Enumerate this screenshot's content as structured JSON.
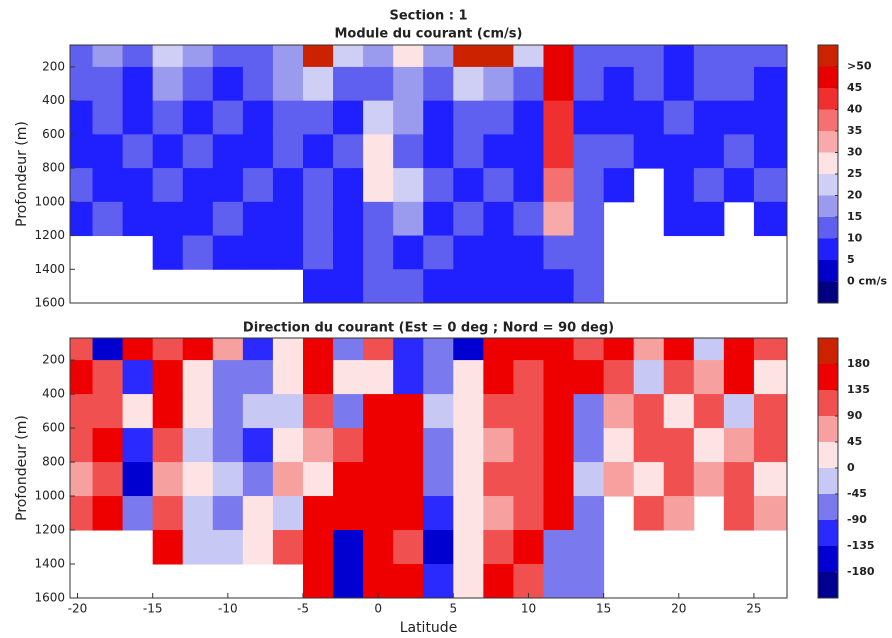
{
  "chart_data": [
    {
      "type": "heatmap",
      "title": "Section : 1",
      "subtitle": "Module du courant (cm/s)",
      "ylabel": "Profondeur (m)",
      "x": [
        -20,
        -18,
        -16,
        -14,
        -12,
        -10,
        -8,
        -6,
        -4,
        -2,
        0,
        2,
        4,
        6,
        8,
        10,
        12,
        14,
        16,
        18,
        20,
        22,
        24,
        26
      ],
      "y": [
        100,
        300,
        500,
        700,
        900,
        1100,
        1300,
        1500
      ],
      "values": [
        [
          12,
          18,
          10,
          20,
          15,
          12,
          10,
          18,
          50,
          20,
          15,
          25,
          15,
          55,
          55,
          20,
          45,
          10,
          12,
          10,
          8,
          10,
          12,
          10
        ],
        [
          10,
          12,
          8,
          15,
          10,
          8,
          12,
          15,
          20,
          10,
          12,
          18,
          10,
          20,
          15,
          10,
          45,
          10,
          8,
          10,
          8,
          12,
          10,
          8
        ],
        [
          8,
          10,
          8,
          12,
          8,
          10,
          8,
          12,
          10,
          8,
          20,
          15,
          8,
          10,
          12,
          8,
          40,
          8,
          8,
          8,
          10,
          8,
          8,
          8
        ],
        [
          8,
          8,
          10,
          8,
          10,
          8,
          8,
          10,
          8,
          10,
          25,
          12,
          8,
          10,
          8,
          8,
          40,
          10,
          10,
          8,
          8,
          8,
          10,
          8
        ],
        [
          10,
          8,
          8,
          10,
          8,
          8,
          10,
          8,
          12,
          8,
          25,
          20,
          10,
          8,
          10,
          8,
          35,
          10,
          8,
          null,
          8,
          10,
          8,
          10
        ],
        [
          8,
          10,
          8,
          8,
          8,
          10,
          8,
          8,
          10,
          8,
          10,
          15,
          8,
          10,
          8,
          10,
          30,
          10,
          null,
          null,
          8,
          8,
          null,
          8
        ],
        [
          null,
          null,
          null,
          8,
          10,
          8,
          8,
          8,
          10,
          8,
          10,
          8,
          10,
          8,
          8,
          8,
          10,
          10,
          null,
          null,
          null,
          null,
          null,
          null
        ],
        [
          null,
          null,
          null,
          null,
          null,
          null,
          null,
          null,
          8,
          8,
          10,
          10,
          8,
          8,
          8,
          8,
          8,
          10,
          null,
          null,
          null,
          null,
          null,
          null
        ]
      ],
      "xlim": [
        -20.5,
        27.2
      ],
      "ylim": [
        70,
        1600
      ],
      "yticks": [
        200,
        400,
        600,
        800,
        1000,
        1200,
        1400,
        1600
      ],
      "clim": [
        -5,
        55
      ],
      "colors": [
        "#000080",
        "#0000c8",
        "#2020ff",
        "#6060f0",
        "#9a9aee",
        "#cfcff5",
        "#fde3e3",
        "#f8aaaa",
        "#f57070",
        "#f03030",
        "#e60000",
        "#cc2200"
      ],
      "cticks": [
        {
          "value": 50,
          "label": ">50"
        },
        45,
        40,
        35,
        30,
        25,
        20,
        15,
        10,
        5,
        {
          "value": 0,
          "label": "0 cm/s"
        }
      ]
    },
    {
      "type": "heatmap",
      "title": "Direction du courant (Est = 0 deg ; Nord = 90 deg)",
      "ylabel": "Profondeur (m)",
      "xlabel": "Latitude",
      "x": [
        -20,
        -18,
        -16,
        -14,
        -12,
        -10,
        -8,
        -6,
        -4,
        -2,
        0,
        2,
        4,
        6,
        8,
        10,
        12,
        14,
        16,
        18,
        20,
        22,
        24,
        26
      ],
      "y": [
        100,
        300,
        500,
        700,
        900,
        1100,
        1300,
        1500
      ],
      "values": [
        [
          120,
          -150,
          150,
          90,
          160,
          60,
          -100,
          30,
          170,
          -60,
          120,
          -120,
          -90,
          -150,
          170,
          170,
          170,
          120,
          150,
          60,
          150,
          -30,
          150,
          100
        ],
        [
          150,
          120,
          -120,
          150,
          30,
          -90,
          -60,
          0,
          150,
          30,
          20,
          -120,
          -60,
          10,
          160,
          120,
          170,
          150,
          90,
          -30,
          120,
          60,
          150,
          30
        ],
        [
          120,
          90,
          30,
          150,
          0,
          -90,
          -30,
          -45,
          90,
          -60,
          150,
          150,
          -45,
          20,
          90,
          120,
          160,
          -90,
          60,
          120,
          30,
          90,
          -30,
          120
        ],
        [
          90,
          150,
          -120,
          90,
          -30,
          -60,
          -120,
          0,
          60,
          120,
          160,
          170,
          -60,
          30,
          60,
          90,
          150,
          -60,
          30,
          90,
          120,
          30,
          60,
          90
        ],
        [
          60,
          120,
          -150,
          60,
          30,
          -30,
          -60,
          45,
          30,
          150,
          170,
          150,
          -90,
          20,
          90,
          120,
          170,
          -30,
          60,
          30,
          90,
          60,
          90,
          30
        ],
        [
          90,
          150,
          -90,
          120,
          -30,
          -60,
          0,
          -30,
          150,
          160,
          150,
          170,
          -100,
          10,
          60,
          90,
          150,
          -90,
          null,
          90,
          60,
          null,
          90,
          60
        ],
        [
          null,
          null,
          null,
          150,
          -30,
          -45,
          30,
          120,
          170,
          -150,
          150,
          120,
          -150,
          30,
          120,
          150,
          -90,
          -60,
          null,
          null,
          null,
          null,
          null,
          null
        ],
        [
          null,
          null,
          null,
          null,
          null,
          null,
          null,
          null,
          170,
          -150,
          160,
          170,
          -120,
          30,
          150,
          90,
          -60,
          -60,
          null,
          null,
          null,
          null,
          null,
          null
        ]
      ],
      "xlim": [
        -20.5,
        27.2
      ],
      "ylim": [
        70,
        1600
      ],
      "yticks": [
        200,
        400,
        600,
        800,
        1000,
        1200,
        1400,
        1600
      ],
      "xticks": [
        -20,
        -15,
        -10,
        -5,
        0,
        5,
        10,
        15,
        20,
        25
      ],
      "clim": [
        -225,
        225
      ],
      "colors": [
        "#000090",
        "#0000d0",
        "#2a2aff",
        "#7a7aee",
        "#c8c8f4",
        "#fde3e3",
        "#f7a0a0",
        "#f05050",
        "#ee0000",
        "#cc2200"
      ],
      "cticks": [
        180,
        135,
        90,
        45,
        0,
        -45,
        -90,
        -135,
        -180
      ]
    }
  ]
}
